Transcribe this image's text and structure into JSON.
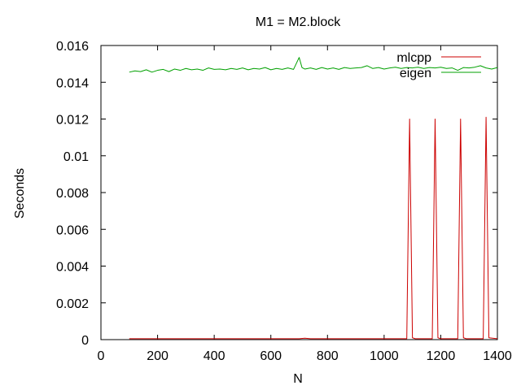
{
  "chart_data": {
    "type": "line",
    "title": "M1 = M2.block",
    "xlabel": "N",
    "ylabel": "Seconds",
    "xlim": [
      0,
      1400
    ],
    "ylim": [
      0,
      0.016
    ],
    "xticks": [
      0,
      200,
      400,
      600,
      800,
      1000,
      1200,
      1400
    ],
    "xtick_labels": [
      "0",
      "200",
      "400",
      "600",
      "800",
      "1000",
      "1200",
      "1400"
    ],
    "yticks": [
      0,
      0.002,
      0.004,
      0.006,
      0.008,
      0.01,
      0.012,
      0.014,
      0.016
    ],
    "ytick_labels": [
      "0",
      "0.002",
      "0.004",
      "0.006",
      "0.008",
      "0.01",
      "0.012",
      "0.014",
      "0.016"
    ],
    "grid": false,
    "legend_position": "top-right",
    "series": [
      {
        "name": "mlcpp",
        "color": "#cc0000",
        "points": [
          [
            100,
            5e-05
          ],
          [
            300,
            5e-05
          ],
          [
            500,
            5e-05
          ],
          [
            700,
            5e-05
          ],
          [
            720,
            8e-05
          ],
          [
            740,
            5e-05
          ],
          [
            900,
            5e-05
          ],
          [
            1080,
            5e-05
          ],
          [
            1090,
            0.012
          ],
          [
            1100,
            0.0001
          ],
          [
            1110,
            5e-05
          ],
          [
            1170,
            5e-05
          ],
          [
            1180,
            0.012
          ],
          [
            1190,
            0.0001
          ],
          [
            1200,
            5e-05
          ],
          [
            1260,
            5e-05
          ],
          [
            1270,
            0.012
          ],
          [
            1280,
            0.0001
          ],
          [
            1290,
            5e-05
          ],
          [
            1350,
            5e-05
          ],
          [
            1360,
            0.0121
          ],
          [
            1370,
            0.0001
          ],
          [
            1400,
            5e-05
          ]
        ]
      },
      {
        "name": "eigen",
        "color": "#00a000",
        "points": [
          [
            100,
            0.01455
          ],
          [
            120,
            0.01462
          ],
          [
            140,
            0.01458
          ],
          [
            160,
            0.01468
          ],
          [
            180,
            0.01455
          ],
          [
            200,
            0.01465
          ],
          [
            220,
            0.0147
          ],
          [
            240,
            0.01458
          ],
          [
            260,
            0.01472
          ],
          [
            280,
            0.01465
          ],
          [
            300,
            0.01475
          ],
          [
            320,
            0.01468
          ],
          [
            340,
            0.01472
          ],
          [
            360,
            0.01465
          ],
          [
            380,
            0.01478
          ],
          [
            400,
            0.0147
          ],
          [
            420,
            0.01472
          ],
          [
            440,
            0.01468
          ],
          [
            460,
            0.01475
          ],
          [
            480,
            0.0147
          ],
          [
            500,
            0.01478
          ],
          [
            520,
            0.01468
          ],
          [
            540,
            0.01475
          ],
          [
            560,
            0.01472
          ],
          [
            580,
            0.0148
          ],
          [
            600,
            0.01468
          ],
          [
            620,
            0.01475
          ],
          [
            640,
            0.0147
          ],
          [
            660,
            0.01478
          ],
          [
            680,
            0.0147
          ],
          [
            700,
            0.01535
          ],
          [
            710,
            0.0148
          ],
          [
            720,
            0.01472
          ],
          [
            740,
            0.01478
          ],
          [
            760,
            0.0147
          ],
          [
            780,
            0.0148
          ],
          [
            800,
            0.01472
          ],
          [
            820,
            0.01478
          ],
          [
            840,
            0.0147
          ],
          [
            860,
            0.0148
          ],
          [
            880,
            0.01475
          ],
          [
            900,
            0.01478
          ],
          [
            920,
            0.0148
          ],
          [
            940,
            0.0149
          ],
          [
            960,
            0.01475
          ],
          [
            980,
            0.0148
          ],
          [
            1000,
            0.01472
          ],
          [
            1020,
            0.01478
          ],
          [
            1040,
            0.01482
          ],
          [
            1060,
            0.01475
          ],
          [
            1080,
            0.0148
          ],
          [
            1100,
            0.01478
          ],
          [
            1120,
            0.01482
          ],
          [
            1140,
            0.01475
          ],
          [
            1160,
            0.0148
          ],
          [
            1180,
            0.01478
          ],
          [
            1200,
            0.01482
          ],
          [
            1220,
            0.01475
          ],
          [
            1240,
            0.01478
          ],
          [
            1260,
            0.01465
          ],
          [
            1280,
            0.0148
          ],
          [
            1300,
            0.01478
          ],
          [
            1320,
            0.01482
          ],
          [
            1340,
            0.0149
          ],
          [
            1360,
            0.01478
          ],
          [
            1380,
            0.01472
          ],
          [
            1400,
            0.0148
          ]
        ]
      }
    ]
  }
}
